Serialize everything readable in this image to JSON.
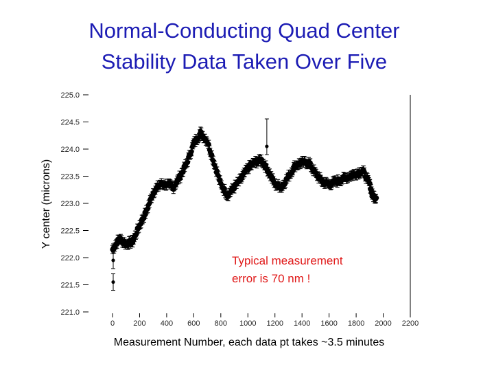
{
  "slide": {
    "title_line1": "Normal-Conducting Quad Center",
    "title_line2": "Stability Data Taken Over Five",
    "title_color": "#1c1cb4"
  },
  "chart_data": {
    "type": "scatter",
    "title": "Normal-Conducting Quad Center Stability Data Taken Over Five",
    "xlabel": "Measurement Number, each data pt takes ~3.5 minutes",
    "ylabel": "Y center (microns)",
    "xlim": [
      0,
      2200
    ],
    "ylim": [
      221.0,
      225.0
    ],
    "x_ticks": [
      "0",
      "200",
      "400",
      "600",
      "800",
      "1000",
      "1200",
      "1400",
      "1600",
      "1800",
      "2000",
      "2200"
    ],
    "y_ticks": [
      "221.0",
      "221.5",
      "222.0",
      "222.5",
      "223.0",
      "223.5",
      "224.0",
      "224.5",
      "225.0"
    ],
    "grid": false,
    "error_bars": true,
    "marker_color": "#000000",
    "annotation_color": "#e01818",
    "annotation": [
      "Typical measurement",
      "error is 70 nm !"
    ],
    "series": [
      {
        "x": [
          0,
          50,
          100,
          150,
          200,
          250,
          300,
          350,
          400,
          450,
          500,
          550,
          600,
          650,
          700,
          750,
          800,
          850,
          900,
          950,
          1000,
          1050,
          1100,
          1150,
          1200,
          1250,
          1300,
          1350,
          1400,
          1450,
          1500,
          1550,
          1600,
          1650,
          1700,
          1750,
          1800,
          1850,
          1900,
          1920,
          1950
        ],
        "y": [
          222.15,
          222.35,
          222.25,
          222.3,
          222.6,
          222.85,
          223.2,
          223.35,
          223.35,
          223.3,
          223.5,
          223.75,
          224.1,
          224.3,
          224.15,
          223.75,
          223.35,
          223.15,
          223.3,
          223.45,
          223.65,
          223.75,
          223.8,
          223.6,
          223.35,
          223.3,
          223.5,
          223.7,
          223.75,
          223.75,
          223.55,
          223.4,
          223.35,
          223.4,
          223.45,
          223.5,
          223.55,
          223.6,
          223.35,
          223.15,
          223.1
        ]
      }
    ],
    "outliers": [
      {
        "x": 5,
        "y": 221.95
      },
      {
        "x": 5,
        "y": 221.55
      },
      {
        "x": 1140,
        "y": 224.05
      }
    ]
  }
}
